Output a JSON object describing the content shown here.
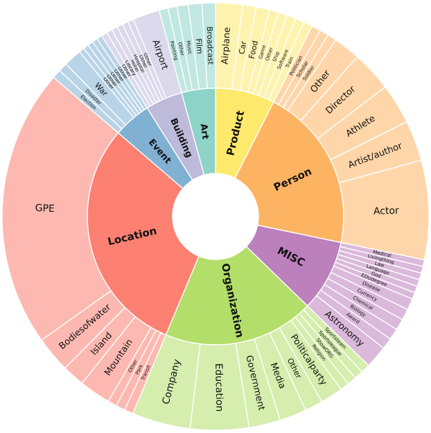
{
  "chart_data": {
    "type": "sunburst",
    "title": "",
    "children": [
      {
        "name": "Product",
        "color": "#fde96b",
        "children": [
          {
            "name": "Airplane",
            "value": 6
          },
          {
            "name": "Car",
            "value": 3
          },
          {
            "name": "Food",
            "value": 3
          },
          {
            "name": "Game",
            "value": 2
          },
          {
            "name": "Other",
            "value": 2
          },
          {
            "name": "Ship",
            "value": 2
          },
          {
            "name": "Software",
            "value": 2
          },
          {
            "name": "Train",
            "value": 2
          }
        ]
      },
      {
        "name": "Person",
        "color": "#fdb462",
        "children": [
          {
            "name": "Politician",
            "value": 2
          },
          {
            "name": "Scholar",
            "value": 2
          },
          {
            "name": "Soldier",
            "value": 2
          },
          {
            "name": "Other",
            "value": 6
          },
          {
            "name": "Director",
            "value": 9
          },
          {
            "name": "Athlete",
            "value": 9
          },
          {
            "name": "Artist/author",
            "value": 9
          },
          {
            "name": "Actor",
            "value": 22
          }
        ]
      },
      {
        "name": "MISC",
        "color": "#bc80bd",
        "children": [
          {
            "name": "Medical",
            "value": 1.5
          },
          {
            "name": "Livingthing",
            "value": 1.5
          },
          {
            "name": "Law",
            "value": 1.5
          },
          {
            "name": "Language",
            "value": 1.5
          },
          {
            "name": "God",
            "value": 1.5
          },
          {
            "name": "EDUdegree",
            "value": 1.5
          },
          {
            "name": "Disease",
            "value": 2.5
          },
          {
            "name": "Currency",
            "value": 2.5
          },
          {
            "name": "Chemical",
            "value": 2.5
          },
          {
            "name": "Biology",
            "value": 2.5
          },
          {
            "name": "Award",
            "value": 2.5
          },
          {
            "name": "Astronomy",
            "value": 5
          }
        ]
      },
      {
        "name": "Organization",
        "color": "#b3de69",
        "children": [
          {
            "name": "Sportsteam",
            "value": 2
          },
          {
            "name": "Sportsleague",
            "value": 2
          },
          {
            "name": "ShowORG",
            "value": 2
          },
          {
            "name": "Religion",
            "value": 2
          },
          {
            "name": "Politicalparty",
            "value": 5
          },
          {
            "name": "Other",
            "value": 4
          },
          {
            "name": "Media",
            "value": 6
          },
          {
            "name": "Government",
            "value": 7
          },
          {
            "name": "Education",
            "value": 13
          },
          {
            "name": "Company",
            "value": 13
          }
        ]
      },
      {
        "name": "Location",
        "color": "#fb8072",
        "children": [
          {
            "name": "Transit",
            "value": 2
          },
          {
            "name": "Park",
            "value": 2
          },
          {
            "name": "Other",
            "value": 2
          },
          {
            "name": "Mountain",
            "value": 7
          },
          {
            "name": "Island",
            "value": 5
          },
          {
            "name": "Bodiesofwater",
            "value": 8
          },
          {
            "name": "GPE",
            "value": 62
          }
        ]
      },
      {
        "name": "Event",
        "color": "#80b1d3",
        "children": [
          {
            "name": "Election",
            "value": 2
          },
          {
            "name": "Disaster",
            "value": 2
          },
          {
            "name": "War",
            "value": 4
          },
          {
            "name": "Other",
            "value": 1.2
          },
          {
            "name": "Other",
            "value": 1.2
          },
          {
            "name": "Other",
            "value": 1.2
          },
          {
            "name": "Other",
            "value": 1.2
          },
          {
            "name": "Other",
            "value": 1.2
          }
        ]
      },
      {
        "name": "Building",
        "color": "#bebada",
        "children": [
          {
            "name": "Other",
            "value": 1.3
          },
          {
            "name": "Library",
            "value": 1.3
          },
          {
            "name": "Hotel",
            "value": 1.3
          },
          {
            "name": "Hospital",
            "value": 1.3
          },
          {
            "name": "Other",
            "value": 1.3
          },
          {
            "name": "Other",
            "value": 1.3
          },
          {
            "name": "Airport",
            "value": 6
          }
        ]
      },
      {
        "name": "Art",
        "color": "#8dd3c7",
        "children": [
          {
            "name": "Painting",
            "value": 2
          },
          {
            "name": "Other",
            "value": 2
          },
          {
            "name": "Music",
            "value": 2.5
          },
          {
            "name": "Film",
            "value": 3
          },
          {
            "name": "Broadcast",
            "value": 3
          }
        ]
      }
    ]
  }
}
